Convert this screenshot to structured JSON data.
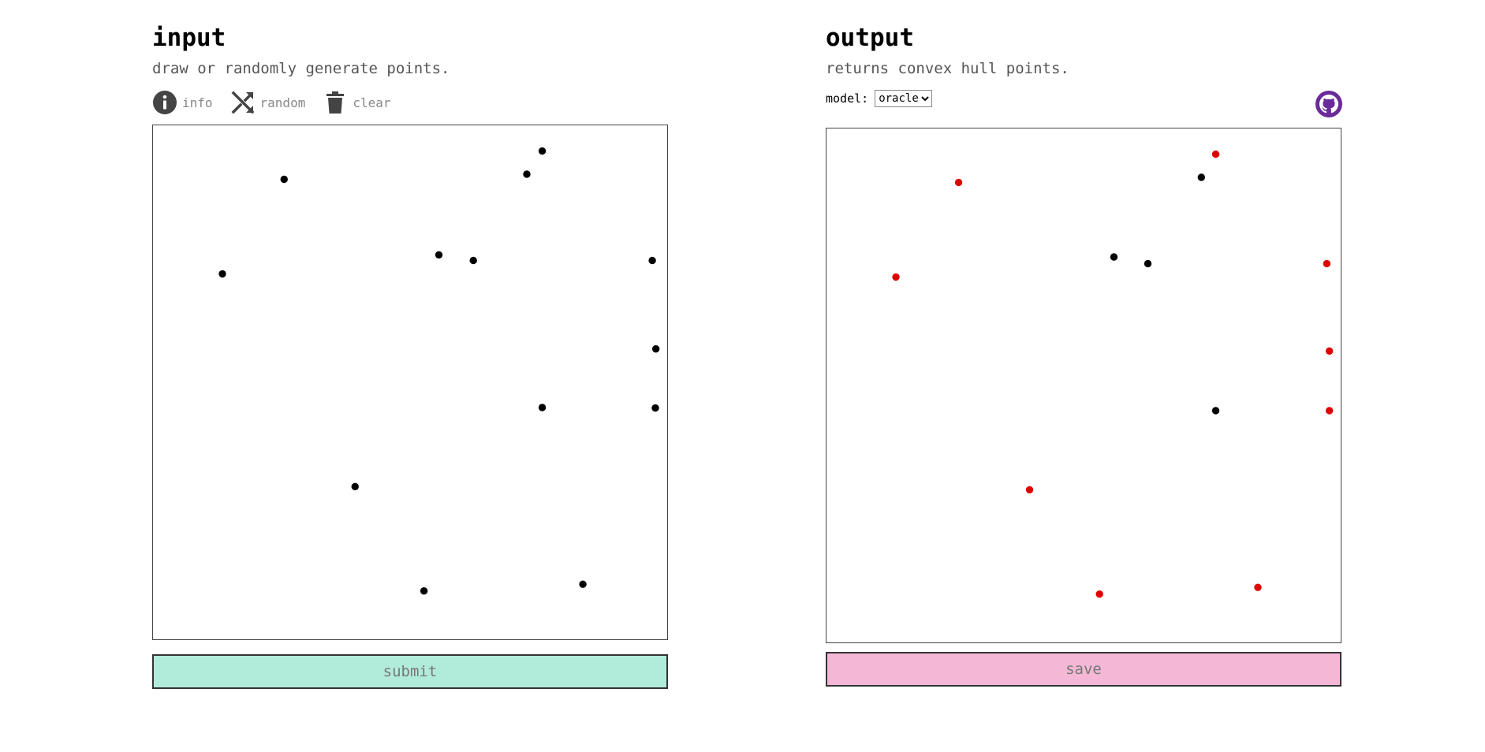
{
  "colors": {
    "submit_bg": "#b1ebd9",
    "save_bg": "#f4b8d6",
    "hull_point": "#e00000",
    "point": "#000000",
    "icon": "#444444",
    "github": "#6a2a9a"
  },
  "input": {
    "title": "input",
    "subtitle": "draw or randomly generate points.",
    "tools": [
      {
        "label": "info",
        "icon": "info-icon"
      },
      {
        "label": "random",
        "icon": "shuffle-icon"
      },
      {
        "label": "clear",
        "icon": "trash-icon"
      }
    ],
    "submit_label": "submit",
    "points": [
      [
        25.5,
        10.5
      ],
      [
        75.7,
        5.0
      ],
      [
        72.7,
        9.5
      ],
      [
        13.5,
        28.9
      ],
      [
        55.6,
        25.2
      ],
      [
        62.3,
        26.3
      ],
      [
        97.1,
        26.3
      ],
      [
        97.8,
        43.5
      ],
      [
        75.7,
        54.9
      ],
      [
        97.7,
        55.0
      ],
      [
        39.3,
        70.3
      ],
      [
        52.7,
        90.6
      ],
      [
        83.6,
        89.3
      ]
    ]
  },
  "output": {
    "title": "output",
    "subtitle": "returns convex hull points.",
    "model_label": "model:",
    "model_selected": "oracle",
    "save_label": "save",
    "github_icon": "github-icon",
    "points": [
      {
        "x": 25.7,
        "y": 10.5,
        "hull": true
      },
      {
        "x": 75.7,
        "y": 5.0,
        "hull": true
      },
      {
        "x": 72.9,
        "y": 9.5,
        "hull": false
      },
      {
        "x": 13.5,
        "y": 28.9,
        "hull": true
      },
      {
        "x": 55.9,
        "y": 25.0,
        "hull": false
      },
      {
        "x": 62.5,
        "y": 26.3,
        "hull": false
      },
      {
        "x": 97.3,
        "y": 26.3,
        "hull": true
      },
      {
        "x": 97.8,
        "y": 43.3,
        "hull": true
      },
      {
        "x": 75.7,
        "y": 54.9,
        "hull": false
      },
      {
        "x": 97.8,
        "y": 54.9,
        "hull": true
      },
      {
        "x": 39.5,
        "y": 70.3,
        "hull": true
      },
      {
        "x": 53.1,
        "y": 90.6,
        "hull": true
      },
      {
        "x": 83.9,
        "y": 89.3,
        "hull": true
      }
    ]
  }
}
